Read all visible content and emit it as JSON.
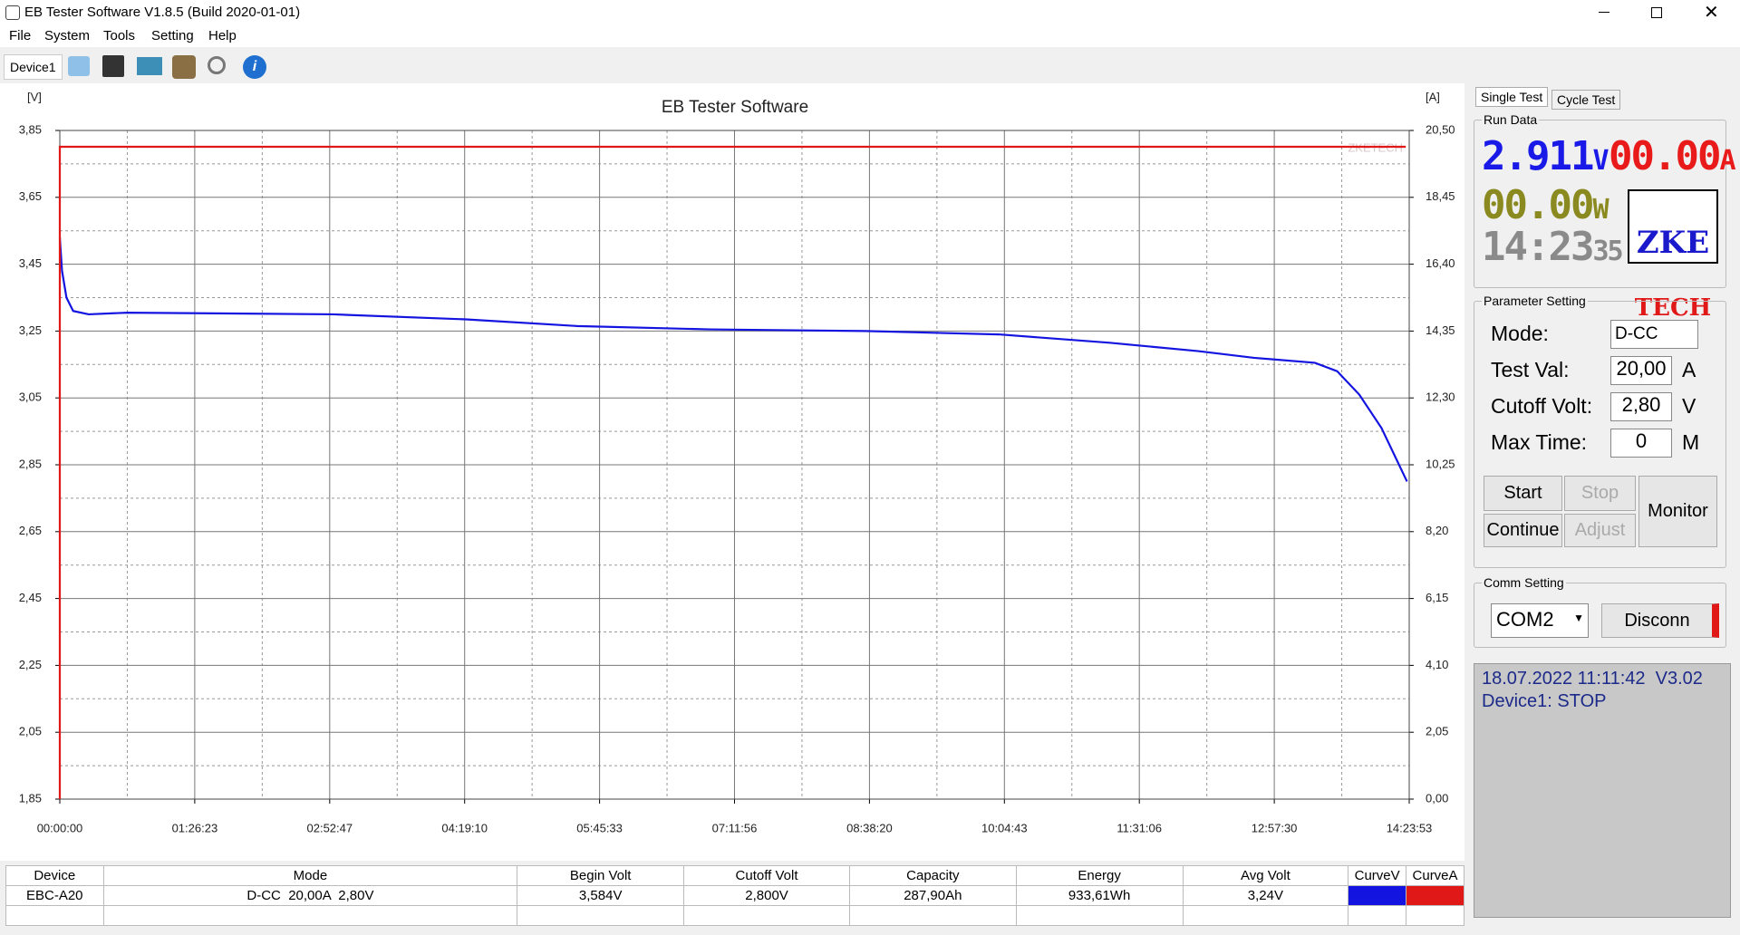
{
  "window": {
    "title": "EB Tester Software V1.8.5 (Build 2020-01-01)"
  },
  "menu": [
    "File",
    "System",
    "Tools",
    "Setting",
    "Help"
  ],
  "toolbar": {
    "device_tab": "Device1"
  },
  "chart_data": {
    "type": "line",
    "title": "EB Tester Software",
    "y_label": "[V]",
    "y2_label": "[A]",
    "watermark": "ZKETECH",
    "grid": true,
    "xlim": [
      0,
      51833
    ],
    "xticks": [
      {
        "value": 0,
        "label": "00:00:00"
      },
      {
        "value": 5183,
        "label": "01:26:23"
      },
      {
        "value": 10367,
        "label": "02:52:47"
      },
      {
        "value": 15550,
        "label": "04:19:10"
      },
      {
        "value": 20733,
        "label": "05:45:33"
      },
      {
        "value": 25916,
        "label": "07:11:56"
      },
      {
        "value": 31100,
        "label": "08:38:20"
      },
      {
        "value": 36283,
        "label": "10:04:43"
      },
      {
        "value": 41466,
        "label": "11:31:06"
      },
      {
        "value": 46650,
        "label": "12:57:30"
      },
      {
        "value": 51833,
        "label": "14:23:53"
      }
    ],
    "ylim": [
      1.85,
      3.85
    ],
    "yticks": [
      {
        "value": 1.85,
        "label": "1,85"
      },
      {
        "value": 2.05,
        "label": "2,05"
      },
      {
        "value": 2.25,
        "label": "2,25"
      },
      {
        "value": 2.45,
        "label": "2,45"
      },
      {
        "value": 2.65,
        "label": "2,65"
      },
      {
        "value": 2.85,
        "label": "2,85"
      },
      {
        "value": 3.05,
        "label": "3,05"
      },
      {
        "value": 3.25,
        "label": "3,25"
      },
      {
        "value": 3.45,
        "label": "3,45"
      },
      {
        "value": 3.65,
        "label": "3,65"
      },
      {
        "value": 3.85,
        "label": "3,85"
      }
    ],
    "y2lim": [
      0,
      20.5
    ],
    "y2ticks": [
      {
        "value": 0,
        "label": "0,00"
      },
      {
        "value": 2.05,
        "label": "2,05"
      },
      {
        "value": 4.1,
        "label": "4,10"
      },
      {
        "value": 6.15,
        "label": "6,15"
      },
      {
        "value": 8.2,
        "label": "8,20"
      },
      {
        "value": 10.25,
        "label": "10,25"
      },
      {
        "value": 12.3,
        "label": "12,30"
      },
      {
        "value": 14.35,
        "label": "14,35"
      },
      {
        "value": 16.4,
        "label": "16,40"
      },
      {
        "value": 18.45,
        "label": "18,45"
      },
      {
        "value": 20.5,
        "label": "20,50"
      }
    ],
    "series": [
      {
        "color": "#1414e0",
        "x": [
          0,
          85,
          256,
          512,
          1108,
          2600,
          10486,
          15601,
          19864,
          24979,
          30946,
          36062,
          40324,
          43735,
          45866,
          48210,
          49063,
          49915,
          50768,
          51748
        ],
        "values": [
          3.53,
          3.43,
          3.35,
          3.31,
          3.3,
          3.305,
          3.3,
          3.285,
          3.265,
          3.255,
          3.25,
          3.24,
          3.215,
          3.19,
          3.17,
          3.155,
          3.13,
          3.06,
          2.96,
          2.8
        ]
      },
      {
        "color": "#e01818",
        "axis": "y2",
        "x": [
          0,
          0,
          51700
        ],
        "values": [
          0,
          20,
          20
        ]
      }
    ]
  },
  "panel": {
    "tabs": [
      "Single Test",
      "Cycle Test"
    ],
    "run_data": {
      "title": "Run Data",
      "volt": "2.911",
      "volt_unit": "V",
      "amp": "00.00",
      "amp_unit": "A",
      "watt": "00.00",
      "watt_unit": "W",
      "time": "14:23",
      "time_sec": "35",
      "logo": [
        "ZKE",
        "TECH"
      ]
    },
    "params": {
      "title": "Parameter Setting",
      "rows": [
        [
          "Mode:",
          "D-CC",
          ""
        ],
        [
          "Test Val:",
          "20,00",
          "A"
        ],
        [
          "Cutoff Volt:",
          "2,80",
          "V"
        ],
        [
          "Max Time:",
          "0",
          "M"
        ]
      ],
      "buttons": [
        "Start",
        "Stop",
        "Continue",
        "Adjust",
        "Monitor"
      ]
    },
    "comm": {
      "title": "Comm Setting",
      "port": "COM2",
      "button": "Disconn"
    },
    "status": [
      "18.07.2022 11:11:42  V3.02",
      "Device1: STOP"
    ]
  },
  "table": {
    "headers": [
      "Device",
      "Mode",
      "Begin Volt",
      "Cutoff Volt",
      "Capacity",
      "Energy",
      "Avg Volt",
      "CurveV",
      "CurveA"
    ],
    "rows": [
      [
        "EBC-A20",
        "D-CC  20,00A  2,80V",
        "3,584V",
        "2,800V",
        "287,90Ah",
        "933,61Wh",
        "3,24V"
      ]
    ]
  }
}
